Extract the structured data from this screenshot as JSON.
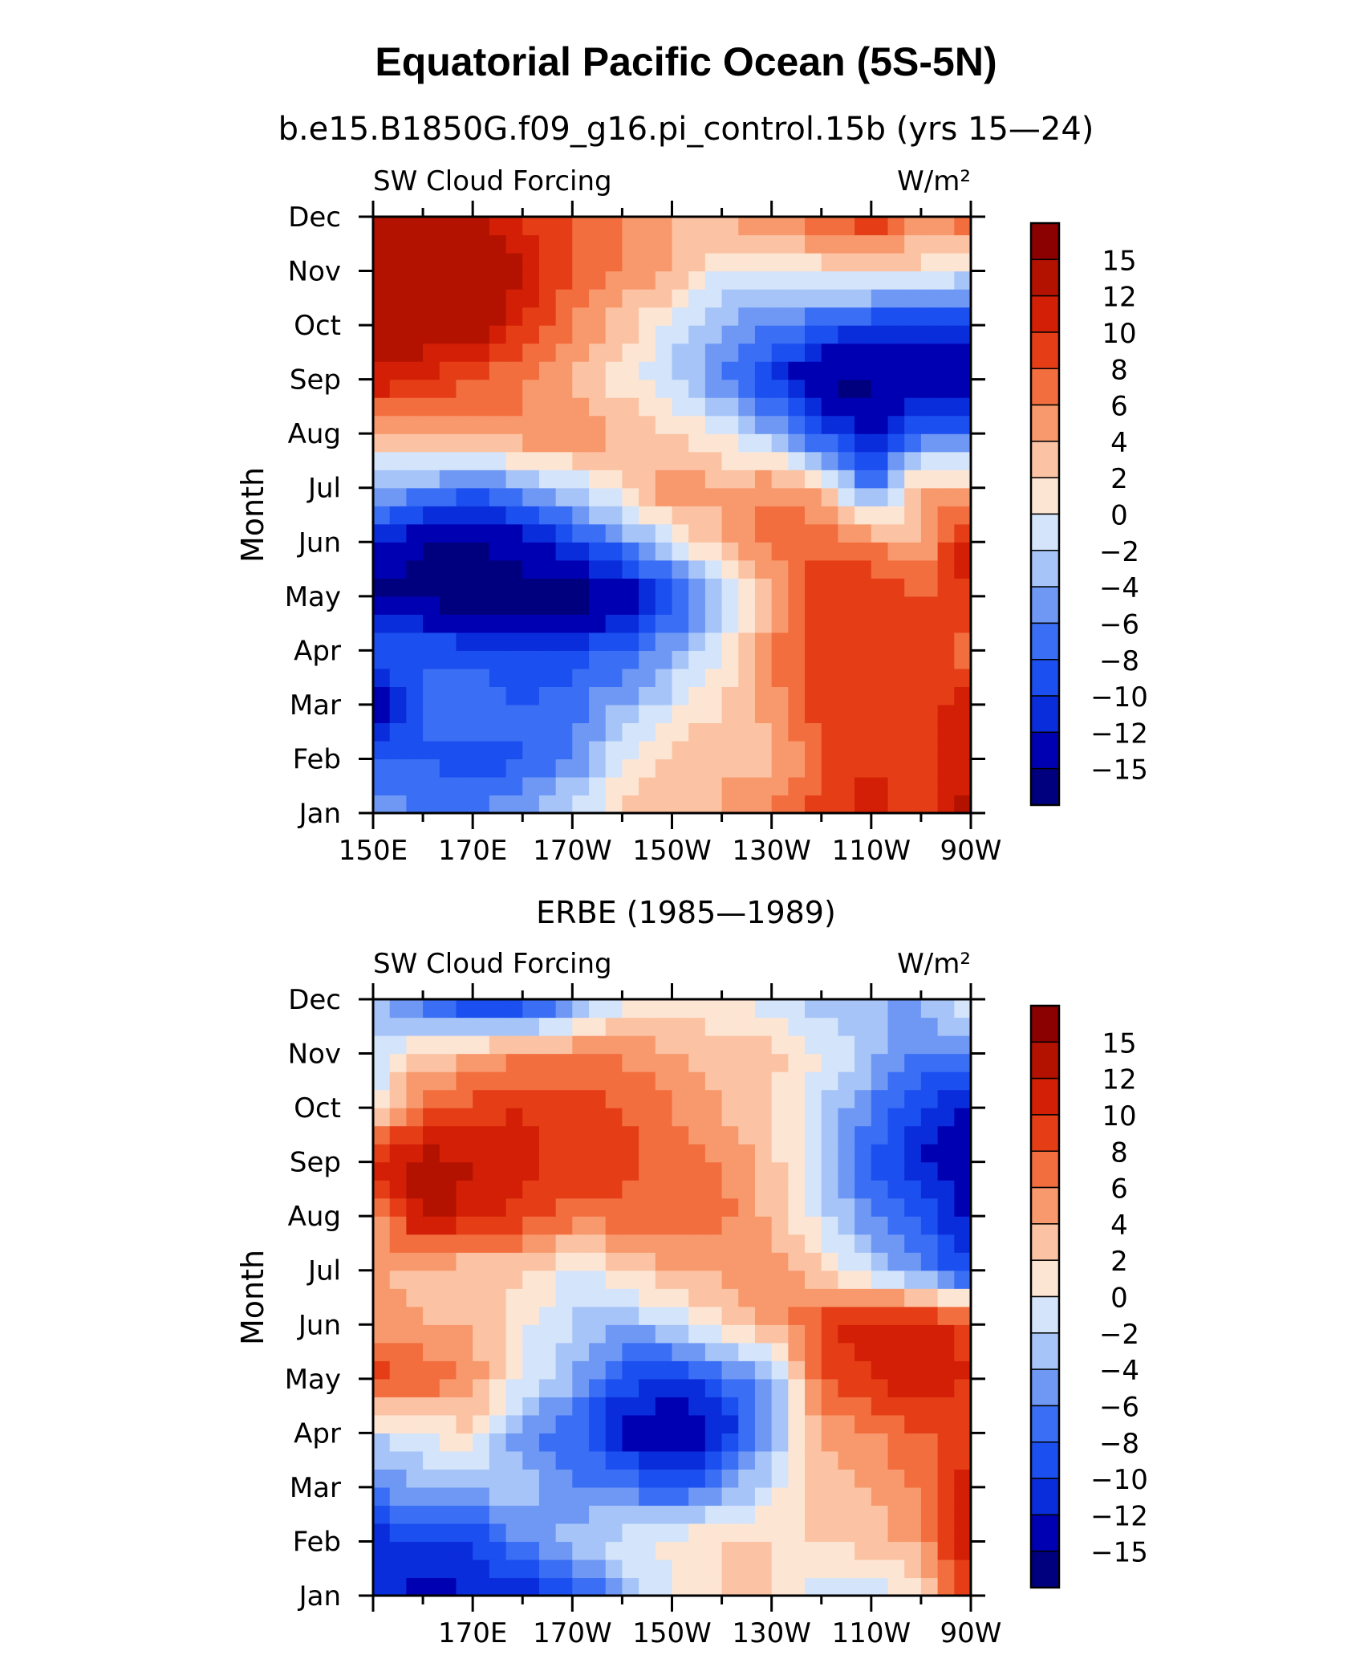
{
  "header": {
    "title": "Equatorial Pacific Ocean (5S-5N)",
    "subtitle": "b.e15.B1850G.f09_g16.pi_control.15b (yrs 15—24)"
  },
  "colors": {
    "scale": [
      "#00007f",
      "#0000b3",
      "#0a2ddc",
      "#1c4fef",
      "#3a6ef5",
      "#6f98f5",
      "#a6c4f7",
      "#d3e4fb",
      "#fde5d4",
      "#fbc3a3",
      "#f8996d",
      "#f26e3f",
      "#e53e17",
      "#d21f05",
      "#b31200",
      "#8b0000"
    ]
  },
  "chart_data": [
    {
      "type": "heatmap",
      "panel_title": "",
      "left_label": "SW Cloud Forcing",
      "right_label": "W/m²",
      "ylabel": "Month",
      "xlabel": "",
      "x_tick_labels": [
        "150E",
        "170E",
        "170W",
        "150W",
        "130W",
        "110W",
        "90W"
      ],
      "y_tick_labels": [
        "Jan",
        "Feb",
        "Mar",
        "Apr",
        "May",
        "Jun",
        "Jul",
        "Aug",
        "Sep",
        "Oct",
        "Nov",
        "Dec"
      ],
      "colorbar_labels": [
        "15",
        "12",
        "10",
        "8",
        "6",
        "4",
        "2",
        "0",
        "−2",
        "−4",
        "−6",
        "−8",
        "−10",
        "−12",
        "−15"
      ],
      "x": [
        150,
        160,
        170,
        180,
        190,
        200,
        210,
        220,
        230,
        240,
        250,
        260,
        270
      ],
      "months": [
        "Jan",
        "Feb",
        "Mar",
        "Apr",
        "May",
        "Jun",
        "Jul",
        "Aug",
        "Sep",
        "Oct",
        "Nov",
        "Dec"
      ],
      "values": [
        [
          -4,
          -6,
          -6,
          -4,
          -1,
          2,
          4,
          4,
          6,
          9,
          11,
          9,
          13
        ],
        [
          -8,
          -8,
          -10,
          -8,
          -6,
          0,
          3,
          4,
          3,
          8,
          10,
          9,
          11
        ],
        [
          -15,
          -8,
          -6,
          -8,
          -7,
          -4,
          -1,
          2,
          5,
          9,
          10,
          9,
          11
        ],
        [
          -8,
          -8,
          -9,
          -10,
          -9,
          -8,
          -4,
          0,
          6,
          9,
          10,
          9,
          7
        ],
        [
          -16,
          -16,
          -17,
          -17,
          -17,
          -15,
          -10,
          -3,
          4,
          9,
          10,
          8,
          10
        ],
        [
          -12,
          -15,
          -16,
          -13,
          -10,
          -6,
          -1,
          4,
          7,
          8,
          6,
          4,
          12
        ],
        [
          -3,
          -5,
          -7,
          -5,
          -2,
          2,
          6,
          4,
          6,
          3,
          -7,
          4,
          4
        ],
        [
          3,
          4,
          5,
          6,
          6,
          4,
          2,
          0,
          -4,
          -9,
          -13,
          -8,
          -8
        ],
        [
          12,
          10,
          8,
          6,
          4,
          1,
          -2,
          -6,
          -10,
          -16,
          -16,
          -13,
          -14
        ],
        [
          13,
          14,
          14,
          10,
          6,
          3,
          -1,
          -4,
          -6,
          -8,
          -10,
          -12,
          -10
        ],
        [
          14,
          14,
          15,
          12,
          8,
          6,
          4,
          0,
          0,
          1,
          2,
          1,
          -1
        ],
        [
          14,
          14,
          12,
          10,
          8,
          6,
          4,
          4,
          6,
          8,
          10,
          6,
          8
        ]
      ]
    },
    {
      "type": "heatmap",
      "panel_title": "ERBE (1985—1989)",
      "left_label": "SW Cloud Forcing",
      "right_label": "W/m²",
      "ylabel": "Month",
      "xlabel": "",
      "x_tick_labels": [
        "170E",
        "170W",
        "150W",
        "130W",
        "110W",
        "90W"
      ],
      "y_tick_labels": [
        "Jan",
        "Feb",
        "Mar",
        "Apr",
        "May",
        "Jun",
        "Jul",
        "Aug",
        "Sep",
        "Oct",
        "Nov",
        "Dec"
      ],
      "colorbar_labels": [
        "15",
        "12",
        "10",
        "8",
        "6",
        "4",
        "2",
        "0",
        "−2",
        "−4",
        "−6",
        "−8",
        "−10",
        "−12",
        "−15"
      ],
      "x": [
        150,
        160,
        170,
        180,
        190,
        200,
        210,
        220,
        230,
        240,
        250,
        260,
        270
      ],
      "months": [
        "Jan",
        "Feb",
        "Mar",
        "Apr",
        "May",
        "Jun",
        "Jul",
        "Aug",
        "Sep",
        "Oct",
        "Nov",
        "Dec"
      ],
      "values": [
        [
          -10,
          -14,
          -12,
          -12,
          -10,
          -4,
          0,
          2,
          2,
          -1,
          -2,
          1,
          10
        ],
        [
          -12,
          -10,
          -10,
          -6,
          -3,
          -1,
          1,
          2,
          2,
          2,
          3,
          5,
          12
        ],
        [
          -6,
          -4,
          -4,
          -2,
          -6,
          -6,
          -9,
          -5,
          -1,
          3,
          4,
          6,
          12
        ],
        [
          -2,
          0,
          2,
          -6,
          -7,
          -13,
          -15,
          -12,
          -4,
          4,
          6,
          8,
          8
        ],
        [
          9,
          8,
          5,
          0,
          -4,
          -9,
          -11,
          -8,
          -4,
          8,
          10,
          12,
          10
        ],
        [
          5,
          4,
          4,
          0,
          -2,
          -4,
          -2,
          2,
          4,
          9,
          12,
          12,
          9
        ],
        [
          4,
          3,
          2,
          3,
          -1,
          2,
          4,
          4,
          6,
          2,
          -2,
          -6,
          -10
        ],
        [
          4,
          13,
          11,
          9,
          7,
          7,
          8,
          7,
          3,
          -1,
          -6,
          -8,
          -13
        ],
        [
          11,
          13,
          12,
          11,
          9,
          9,
          7,
          6,
          3,
          -3,
          -8,
          -12,
          -15
        ],
        [
          0,
          8,
          9,
          10,
          9,
          8,
          6,
          4,
          2,
          -2,
          -6,
          -10,
          -12
        ],
        [
          -2,
          2,
          4,
          6,
          6,
          6,
          4,
          3,
          3,
          0,
          -3,
          -6,
          -6
        ],
        [
          -3,
          -7,
          -12,
          -11,
          -6,
          -1,
          1,
          0,
          -1,
          -3,
          -4,
          -4,
          1
        ]
      ]
    }
  ]
}
